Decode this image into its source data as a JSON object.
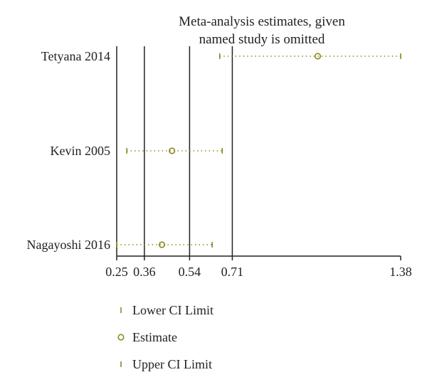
{
  "chart_data": {
    "type": "scatter",
    "title_lines": [
      "Meta-analysis estimates, given",
      "named study is omitted"
    ],
    "studies": [
      {
        "name": "Tetyana 2014",
        "lower": 0.66,
        "estimate": 1.05,
        "upper": 1.38
      },
      {
        "name": "Kevin 2005",
        "lower": 0.29,
        "estimate": 0.47,
        "upper": 0.67
      },
      {
        "name": "Nagayoshi 2016",
        "lower": 0.25,
        "estimate": 0.43,
        "upper": 0.63
      }
    ],
    "xticks": [
      {
        "value": 0.25,
        "label": "0.25"
      },
      {
        "value": 0.36,
        "label": "0.36"
      },
      {
        "value": 0.54,
        "label": "0.54"
      },
      {
        "value": 0.71,
        "label": "0.71"
      },
      {
        "value": 1.38,
        "label": "1.38"
      }
    ],
    "reference_lines": [
      0.25,
      0.36,
      0.54,
      0.71
    ],
    "xlim": [
      0.25,
      1.38
    ],
    "legend": {
      "placement": "bottom-left",
      "items": [
        {
          "marker": "tick",
          "label": "Lower CI Limit"
        },
        {
          "marker": "circle",
          "label": "Estimate"
        },
        {
          "marker": "tick",
          "label": "Upper CI Limit"
        }
      ]
    },
    "colors": {
      "marker": "#8a8a1e",
      "line": "#222222",
      "text": "#222222"
    }
  }
}
